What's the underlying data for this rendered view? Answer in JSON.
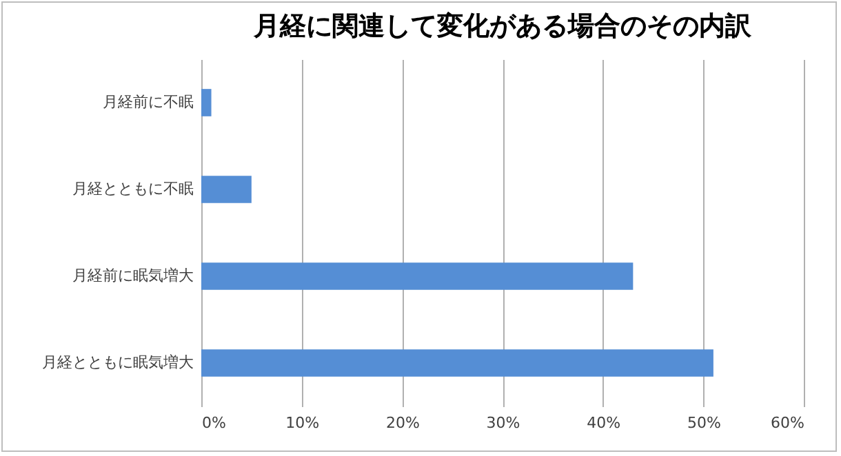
{
  "chart_data": {
    "type": "bar",
    "orientation": "horizontal",
    "title": "月経に関連して変化がある場合のその内訳",
    "categories": [
      "月経前に不眠",
      "月経とともに不眠",
      "月経前に眠気増大",
      "月経とともに眠気増大"
    ],
    "values": [
      1,
      5,
      43,
      51
    ],
    "color": "#558ed5",
    "xlim": [
      0,
      60
    ],
    "xticks": [
      {
        "value": 0,
        "label": "0%"
      },
      {
        "value": 10,
        "label": "10%"
      },
      {
        "value": 20,
        "label": "20%"
      },
      {
        "value": 30,
        "label": "30%"
      },
      {
        "value": 40,
        "label": "40%"
      },
      {
        "value": 50,
        "label": "50%"
      },
      {
        "value": 60,
        "label": "60%"
      }
    ],
    "grid": "x"
  }
}
